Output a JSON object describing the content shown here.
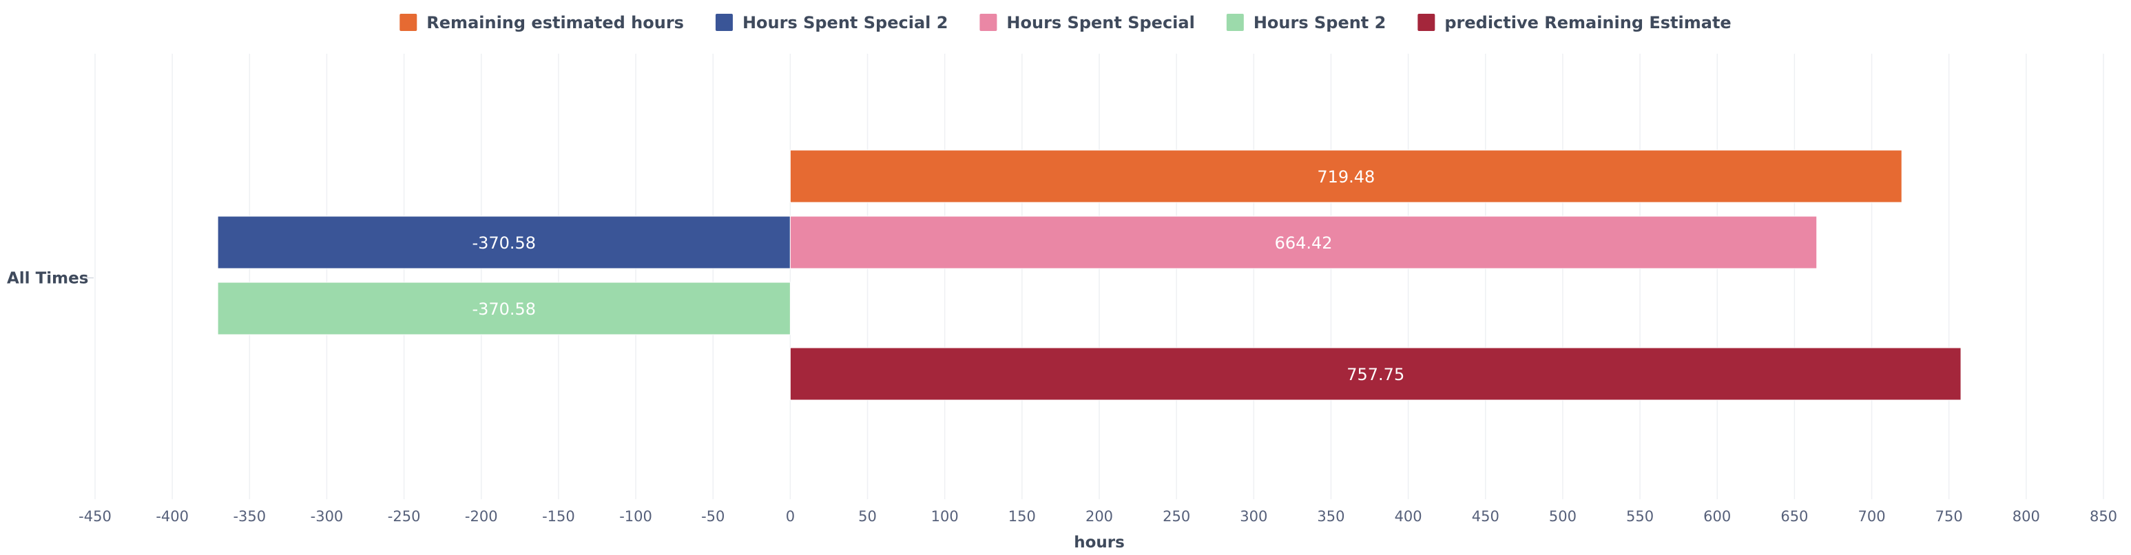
{
  "chart_data": {
    "type": "bar",
    "orientation": "horizontal",
    "categories": [
      "All Times"
    ],
    "series": [
      {
        "name": "Remaining estimated hours",
        "color": "#e66a32",
        "values": [
          719.48
        ],
        "label": "719.48"
      },
      {
        "name": "Hours Spent Special 2",
        "color": "#3a5597",
        "values": [
          -370.58
        ],
        "label": "-370.58"
      },
      {
        "name": "Hours Spent Special",
        "color": "#ea87a5",
        "values": [
          664.42
        ],
        "label": "664.42"
      },
      {
        "name": "Hours Spent 2",
        "color": "#9cdaab",
        "values": [
          -370.58
        ],
        "label": "-370.58"
      },
      {
        "name": "predictive Remaining Estimate",
        "color": "#a4263b",
        "values": [
          757.75
        ],
        "label": "757.75"
      }
    ],
    "xlim": [
      -450,
      850
    ],
    "xticks": [
      "-450",
      "-400",
      "-350",
      "-300",
      "-250",
      "-200",
      "-150",
      "-100",
      "-50",
      "0",
      "50",
      "100",
      "150",
      "200",
      "250",
      "300",
      "350",
      "400",
      "450",
      "500",
      "550",
      "600",
      "650",
      "700",
      "750",
      "800",
      "850"
    ],
    "xlabel": "hours",
    "ylabel": "",
    "title": "",
    "grid": true,
    "legend": "top-center"
  }
}
